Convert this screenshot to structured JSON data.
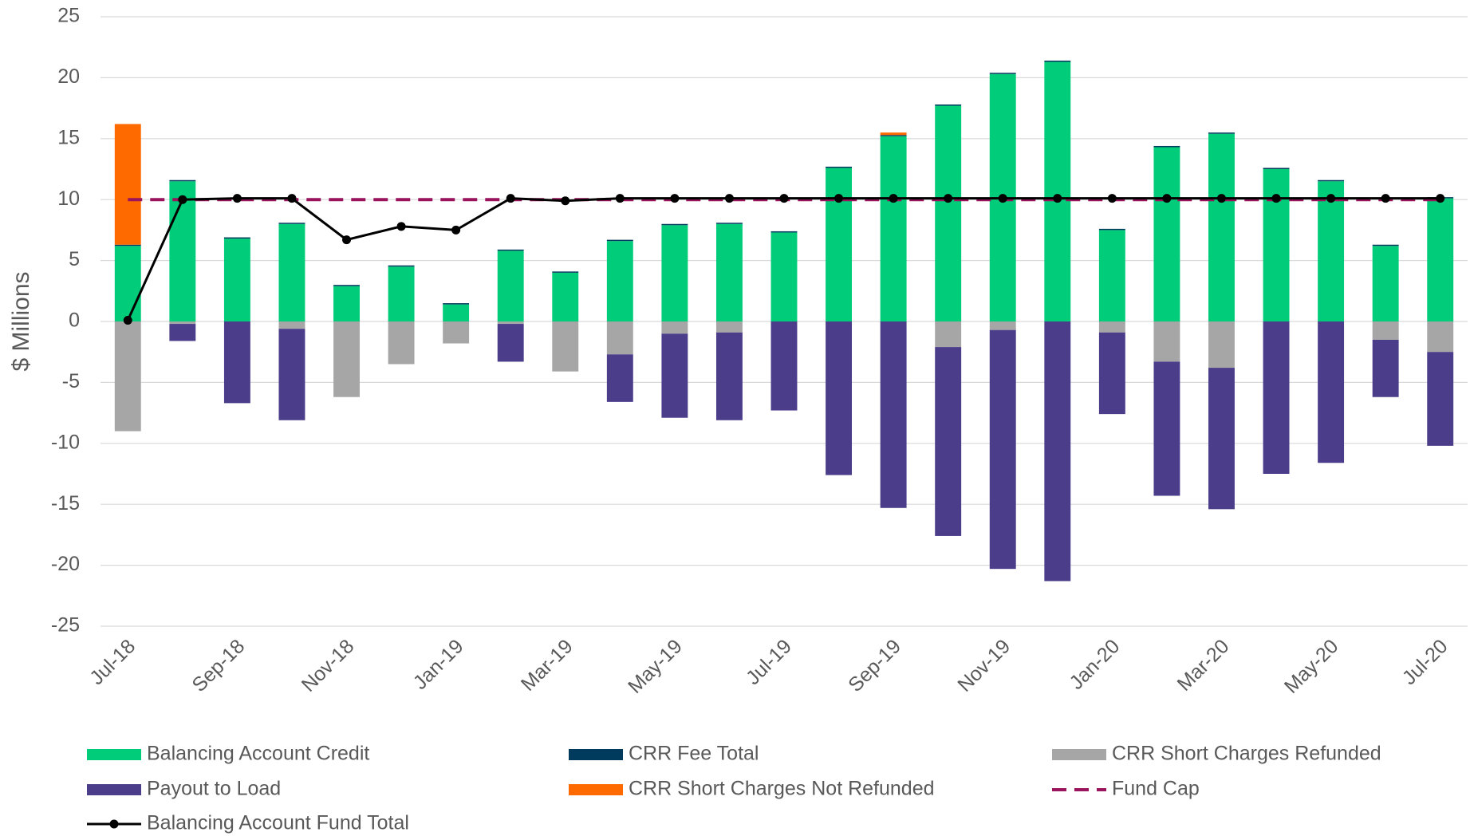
{
  "chart_data": {
    "type": "bar",
    "ylabel": "$ Millions",
    "categories": [
      "Jul-18",
      null,
      "Sep-18",
      null,
      "Nov-18",
      null,
      "Jan-19",
      null,
      "Mar-19",
      null,
      "May-19",
      null,
      "Jul-19",
      null,
      "Sep-19",
      null,
      "Nov-19",
      null,
      "Jan-20",
      null,
      "Mar-20",
      null,
      "May-20",
      null,
      "Jul-20"
    ],
    "ylim": [
      -25,
      25
    ],
    "yticks": [
      -25,
      -20,
      -15,
      -10,
      -5,
      0,
      5,
      10,
      15,
      20,
      25
    ],
    "grid": true,
    "legend": "bottom",
    "series": [
      {
        "name": "Balancing Account Credit",
        "color": "#00cc7a",
        "type": "bar",
        "values": [
          6.2,
          11.5,
          6.8,
          8.0,
          2.9,
          4.5,
          1.4,
          5.8,
          4.0,
          6.6,
          7.9,
          8.0,
          7.3,
          12.6,
          15.2,
          17.7,
          20.3,
          21.3,
          7.5,
          14.3,
          15.4,
          12.5,
          11.5,
          6.2,
          10.1
        ]
      },
      {
        "name": "CRR Fee Total",
        "color": "#003a5c",
        "type": "bar",
        "values": [
          0.1,
          0.1,
          0.1,
          0.1,
          0.1,
          0.1,
          0.1,
          0.1,
          0.1,
          0.1,
          0.1,
          0.1,
          0.1,
          0.1,
          0.1,
          0.1,
          0.1,
          0.1,
          0.1,
          0.1,
          0.1,
          0.1,
          0.1,
          0.1,
          0.1
        ]
      },
      {
        "name": "CRR Short Charges Refunded",
        "color": "#a6a6a6",
        "type": "bar",
        "values": [
          -9.0,
          -0.2,
          0,
          -0.6,
          -6.2,
          -3.5,
          -1.8,
          -0.2,
          -4.1,
          -2.7,
          -1.0,
          -0.9,
          0,
          0,
          0,
          -2.1,
          -0.7,
          0,
          -0.9,
          -3.3,
          -3.8,
          0,
          0,
          -1.5,
          -2.5
        ]
      },
      {
        "name": "Payout to Load",
        "color": "#4b3d8a",
        "type": "bar",
        "values": [
          0,
          -1.4,
          -6.7,
          -7.5,
          0,
          0,
          0,
          -3.1,
          0,
          -3.9,
          -6.9,
          -7.2,
          -7.3,
          -12.6,
          -15.3,
          -15.5,
          -19.6,
          -21.3,
          -6.7,
          -11.0,
          -11.6,
          -12.5,
          -11.6,
          -4.7,
          -7.7
        ]
      },
      {
        "name": "CRR Short Charges Not Refunded",
        "color": "#ff6a00",
        "type": "bar",
        "values": [
          9.9,
          0,
          0,
          0,
          0,
          0,
          0,
          0,
          0,
          0,
          0,
          0,
          0,
          0,
          0.2,
          0,
          0,
          0,
          0,
          0,
          0,
          0,
          0,
          0,
          0
        ]
      },
      {
        "name": "Fund Cap",
        "color": "#99145c",
        "type": "line",
        "dashed": true,
        "values": [
          10,
          10,
          10,
          10,
          10,
          10,
          10,
          10,
          10,
          10,
          10,
          10,
          10,
          10,
          10,
          10,
          10,
          10,
          10,
          10,
          10,
          10,
          10,
          10,
          10
        ]
      },
      {
        "name": "Balancing Account Fund Total",
        "color": "#000000",
        "type": "line",
        "markers": true,
        "values": [
          0.1,
          10.0,
          10.1,
          10.1,
          6.7,
          7.8,
          7.5,
          10.1,
          9.9,
          10.1,
          10.1,
          10.1,
          10.1,
          10.1,
          10.1,
          10.1,
          10.1,
          10.1,
          10.1,
          10.1,
          10.1,
          10.1,
          10.1,
          10.1,
          10.1
        ]
      }
    ]
  }
}
